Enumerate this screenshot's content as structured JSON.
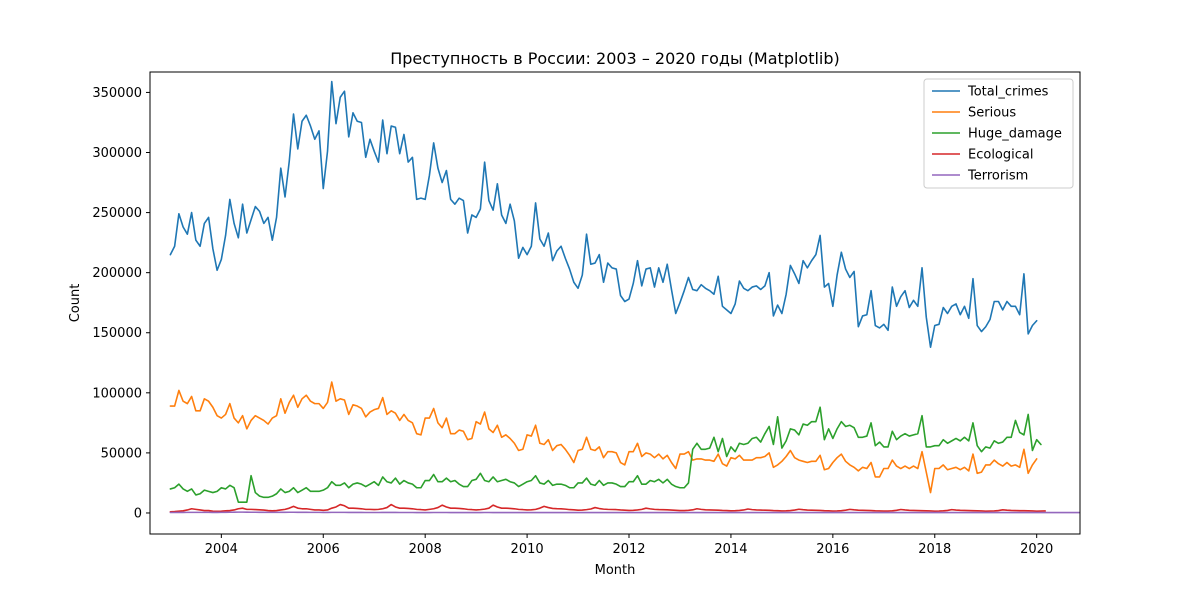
{
  "chart_data": {
    "type": "line",
    "title": "Преступность в России: 2003 – 2020 годы (Matplotlib)",
    "xlabel": "Month",
    "ylabel": "Count",
    "xlim": [
      2002.6,
      2020.85
    ],
    "ylim": [
      -17500,
      367000
    ],
    "x_ticks": [
      2004,
      2006,
      2008,
      2010,
      2012,
      2014,
      2016,
      2018,
      2020
    ],
    "x_tick_labels": [
      "2004",
      "2006",
      "2008",
      "2010",
      "2012",
      "2014",
      "2016",
      "2018",
      "2020"
    ],
    "y_ticks": [
      0,
      50000,
      100000,
      150000,
      200000,
      250000,
      300000,
      350000
    ],
    "y_tick_labels": [
      "0",
      "50000",
      "100000",
      "150000",
      "200000",
      "250000",
      "300000",
      "350000"
    ],
    "grid": false,
    "legend_position": "top-right",
    "x_start": 2003.0,
    "x_step": 0.0833333,
    "series": [
      {
        "name": "Total_crimes",
        "color": "#1f77b4",
        "values": [
          215000,
          222000,
          249000,
          238000,
          232000,
          250000,
          227000,
          222000,
          241000,
          246000,
          220000,
          202000,
          211000,
          231000,
          261000,
          241000,
          229000,
          257000,
          233000,
          244000,
          255000,
          251000,
          241000,
          246000,
          227000,
          246000,
          287000,
          263000,
          293000,
          332000,
          303000,
          326000,
          331000,
          322000,
          311000,
          318000,
          270000,
          301000,
          359000,
          324000,
          346000,
          351000,
          313000,
          333000,
          326000,
          325000,
          296000,
          311000,
          301000,
          292000,
          327000,
          299000,
          322000,
          321000,
          299000,
          315000,
          292000,
          296000,
          261000,
          262000,
          261000,
          281000,
          308000,
          287000,
          275000,
          285000,
          261000,
          257000,
          262000,
          260000,
          233000,
          248000,
          246000,
          253000,
          292000,
          260000,
          252000,
          274000,
          248000,
          241000,
          257000,
          243000,
          212000,
          221000,
          215000,
          222000,
          258000,
          228000,
          222000,
          233000,
          210000,
          218000,
          222000,
          212000,
          203000,
          192000,
          187000,
          198000,
          232000,
          207000,
          208000,
          215000,
          192000,
          208000,
          204000,
          203000,
          181000,
          176000,
          178000,
          191000,
          210000,
          189000,
          203000,
          204000,
          188000,
          204000,
          192000,
          207000,
          186000,
          166000,
          175000,
          185000,
          196000,
          186000,
          185000,
          190000,
          187000,
          185000,
          182000,
          197000,
          172000,
          169000,
          166000,
          174000,
          193000,
          187000,
          185000,
          188000,
          189000,
          186000,
          189000,
          200000,
          164000,
          173000,
          166000,
          182000,
          206000,
          199000,
          191000,
          210000,
          204000,
          210000,
          215000,
          231000,
          188000,
          191000,
          172000,
          198000,
          217000,
          203000,
          196000,
          201000,
          155000,
          164000,
          165000,
          185000,
          156000,
          154000,
          157000,
          152000,
          188000,
          172000,
          180000,
          185000,
          171000,
          177000,
          172000,
          204000,
          163000,
          138000,
          156000,
          157000,
          171000,
          166000,
          172000,
          174000,
          165000,
          172000,
          162000,
          195000,
          156000,
          151000,
          155000,
          161000,
          176000,
          176000,
          169000,
          176000,
          172000,
          172000,
          165000,
          199000,
          149000,
          156000,
          160000
        ]
      },
      {
        "name": "Serious",
        "color": "#ff7f0e",
        "values": [
          89000,
          89000,
          102000,
          93000,
          91000,
          97000,
          85000,
          85000,
          95000,
          93000,
          88000,
          81000,
          79000,
          82000,
          91000,
          79000,
          75000,
          81000,
          70000,
          77000,
          81000,
          79000,
          77000,
          74000,
          79000,
          81000,
          95000,
          83000,
          92000,
          98000,
          88000,
          95000,
          98000,
          93000,
          91000,
          91000,
          87000,
          92000,
          109000,
          93000,
          95000,
          94000,
          82000,
          90000,
          89000,
          87000,
          80000,
          84000,
          86000,
          87000,
          96000,
          82000,
          85000,
          83000,
          77000,
          82000,
          77000,
          75000,
          66000,
          65000,
          79000,
          79000,
          87000,
          75000,
          71000,
          79000,
          66000,
          66000,
          69000,
          68000,
          61000,
          62000,
          76000,
          74000,
          84000,
          70000,
          67000,
          73000,
          63000,
          65000,
          62000,
          58000,
          52000,
          53000,
          65000,
          64000,
          73000,
          58000,
          57000,
          61000,
          52000,
          56000,
          57000,
          53000,
          48000,
          42000,
          52000,
          53000,
          63000,
          53000,
          52000,
          55000,
          46000,
          51000,
          51000,
          50000,
          42000,
          40000,
          51000,
          51000,
          58000,
          47000,
          50000,
          49000,
          46000,
          49000,
          45000,
          48000,
          42000,
          37000,
          49000,
          49000,
          51000,
          44000,
          45000,
          45000,
          44000,
          44000,
          43000,
          49000,
          41000,
          39000,
          46000,
          45000,
          48000,
          44000,
          44000,
          44000,
          46000,
          46000,
          47000,
          50000,
          38000,
          40000,
          43000,
          47000,
          52000,
          46000,
          44000,
          43000,
          42000,
          43000,
          43000,
          48000,
          36000,
          37000,
          42000,
          46000,
          49000,
          43000,
          40000,
          38000,
          35000,
          38000,
          37000,
          42000,
          30000,
          30000,
          37000,
          37000,
          44000,
          39000,
          37000,
          39000,
          37000,
          39000,
          37000,
          51000,
          34000,
          17000,
          37000,
          37000,
          40000,
          36000,
          37000,
          38000,
          36000,
          38000,
          35000,
          49000,
          33000,
          34000,
          40000,
          40000,
          44000,
          41000,
          39000,
          42000,
          39000,
          40000,
          38000,
          53000,
          33000,
          40000,
          45000
        ]
      },
      {
        "name": "Huge_damage",
        "color": "#2ca02c",
        "values": [
          20000,
          21000,
          24000,
          20000,
          18000,
          20000,
          15000,
          16000,
          19000,
          18000,
          17000,
          18000,
          21000,
          20000,
          23000,
          21000,
          9000,
          9000,
          9000,
          31000,
          17000,
          14000,
          13000,
          13000,
          14000,
          16000,
          20000,
          17000,
          18000,
          21000,
          17000,
          19000,
          21000,
          18000,
          18000,
          18000,
          19000,
          21000,
          26000,
          23000,
          23000,
          25000,
          21000,
          24000,
          25000,
          24000,
          22000,
          24000,
          26000,
          23000,
          30000,
          26000,
          25000,
          29000,
          24000,
          27000,
          25000,
          24000,
          21000,
          21000,
          27000,
          27000,
          32000,
          26000,
          26000,
          29000,
          26000,
          27000,
          24000,
          22000,
          22000,
          27000,
          28000,
          33000,
          27000,
          26000,
          30000,
          26000,
          27000,
          28000,
          26000,
          25000,
          22000,
          24000,
          26000,
          27000,
          31000,
          25000,
          24000,
          27000,
          23000,
          24000,
          24000,
          23000,
          21000,
          21000,
          25000,
          25000,
          29000,
          24000,
          23000,
          27000,
          23000,
          25000,
          25000,
          24000,
          22000,
          22000,
          26000,
          26000,
          31000,
          24000,
          24000,
          27000,
          26000,
          28000,
          25000,
          28000,
          24000,
          22000,
          21000,
          21000,
          25000,
          53000,
          58000,
          53000,
          53000,
          54000,
          63000,
          51000,
          62000,
          47000,
          55000,
          51000,
          58000,
          57000,
          58000,
          62000,
          63000,
          59000,
          66000,
          72000,
          57000,
          80000,
          54000,
          60000,
          70000,
          69000,
          65000,
          74000,
          73000,
          76000,
          76000,
          88000,
          61000,
          70000,
          62000,
          70000,
          76000,
          72000,
          73000,
          71000,
          63000,
          63000,
          64000,
          75000,
          56000,
          59000,
          55000,
          55000,
          68000,
          61000,
          64000,
          66000,
          64000,
          65000,
          66000,
          81000,
          55000,
          55000,
          56000,
          56000,
          61000,
          58000,
          60000,
          62000,
          60000,
          63000,
          60000,
          75000,
          56000,
          51000,
          55000,
          54000,
          60000,
          58000,
          59000,
          63000,
          63000,
          77000,
          67000,
          65000,
          82000,
          52000,
          61000,
          57000
        ]
      },
      {
        "name": "Ecological",
        "color": "#d62728",
        "values": [
          1000,
          1200,
          1500,
          1800,
          2500,
          3500,
          3000,
          2500,
          2000,
          2000,
          1500,
          1400,
          1500,
          1800,
          2000,
          2500,
          3500,
          4000,
          3000,
          3000,
          2800,
          2600,
          2400,
          2000,
          1800,
          2000,
          2500,
          3000,
          4000,
          5500,
          4000,
          3500,
          3500,
          3000,
          2500,
          2500,
          2200,
          2500,
          4000,
          5000,
          7000,
          6000,
          4000,
          4000,
          3800,
          3500,
          3000,
          3000,
          2800,
          3000,
          3500,
          4500,
          7000,
          5000,
          4000,
          4000,
          3800,
          3500,
          3000,
          2800,
          2500,
          3000,
          3500,
          4500,
          6500,
          5000,
          4000,
          4000,
          3800,
          3500,
          3000,
          2800,
          2500,
          2800,
          3200,
          4000,
          6500,
          5000,
          4000,
          4000,
          3800,
          3500,
          3000,
          2800,
          2500,
          2600,
          3000,
          4000,
          5500,
          4500,
          3800,
          3600,
          3500,
          3200,
          2800,
          2600,
          2300,
          2400,
          2800,
          3300,
          4500,
          3700,
          3200,
          3000,
          2900,
          2800,
          2500,
          2300,
          2100,
          2200,
          2500,
          3000,
          4000,
          3400,
          3000,
          2800,
          2700,
          2600,
          2400,
          2200,
          2000,
          2000,
          2200,
          2600,
          3500,
          3000,
          2600,
          2500,
          2400,
          2300,
          2100,
          2000,
          1800,
          1900,
          2100,
          2500,
          3300,
          2800,
          2500,
          2400,
          2300,
          2200,
          2000,
          1900,
          1700,
          1800,
          2000,
          2400,
          3100,
          2700,
          2400,
          2300,
          2200,
          2100,
          1900,
          1800,
          1600,
          1700,
          1900,
          2300,
          3000,
          2600,
          2300,
          2200,
          2100,
          2000,
          1800,
          1700,
          1600,
          1600,
          1800,
          2200,
          2900,
          2500,
          2200,
          2100,
          2000,
          1900,
          1800,
          1700,
          1500,
          1600,
          1800,
          2100,
          2800,
          2400,
          2200,
          2100,
          2000,
          1900,
          1800,
          1700,
          1500,
          1600,
          1700,
          2000,
          2600,
          2300,
          2100,
          2000,
          1900,
          1900,
          1800,
          1700,
          1500,
          1600,
          1700
        ]
      },
      {
        "name": "Terrorism",
        "color": "#9467bd",
        "values": [
          400,
          400,
          450,
          450,
          500,
          500,
          500,
          500,
          500,
          500,
          450,
          450,
          500,
          500,
          600,
          650,
          700,
          700,
          650,
          600,
          600,
          550,
          550,
          500,
          500,
          500,
          550,
          550,
          600,
          600,
          550,
          550,
          550,
          500,
          500,
          500,
          450,
          450,
          500,
          500,
          500,
          500,
          450,
          450,
          450,
          450,
          400,
          400,
          400,
          400,
          450,
          450,
          450,
          450,
          400,
          400,
          400,
          400,
          350,
          350,
          350,
          350,
          400,
          400,
          400,
          400,
          350,
          350,
          350,
          350,
          300,
          300,
          350,
          350,
          400,
          400,
          350,
          350,
          350,
          350,
          300,
          300,
          300,
          300,
          350,
          350,
          350,
          350,
          300,
          300,
          300,
          300,
          300,
          300,
          300,
          300,
          300,
          300,
          300,
          300,
          300,
          300,
          300,
          300,
          300,
          300,
          300,
          300,
          300,
          300,
          300,
          300,
          300,
          300,
          300,
          300,
          300,
          300,
          300,
          300,
          300,
          300,
          300,
          300,
          300,
          300,
          300,
          300,
          300,
          300,
          300,
          300,
          300,
          300,
          300,
          300,
          300,
          300,
          300,
          300,
          300,
          300,
          300,
          300,
          300,
          300,
          300,
          300,
          300,
          300,
          300,
          300,
          300,
          300,
          300,
          300,
          300,
          300,
          300,
          300,
          300,
          300,
          300,
          300,
          300,
          300,
          300,
          300,
          300,
          300,
          300,
          300,
          300,
          300,
          300,
          300,
          300,
          300,
          300,
          300,
          300,
          300,
          300,
          300,
          300,
          300,
          300,
          300,
          300,
          300,
          300,
          300,
          300,
          300,
          300,
          300,
          300,
          300,
          300,
          300,
          300,
          300,
          300,
          300,
          300,
          300,
          300,
          300,
          300,
          300,
          300,
          300,
          300,
          300,
          300
        ]
      }
    ]
  }
}
